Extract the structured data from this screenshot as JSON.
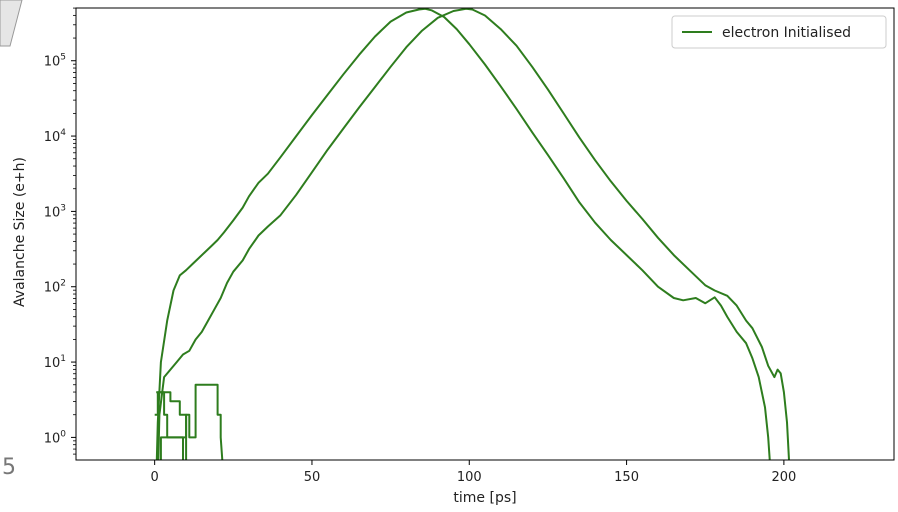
{
  "chart_data": {
    "type": "line",
    "title": "",
    "xlabel": "time [ps]",
    "ylabel": "Avalanche Size (e+h)",
    "xlim": [
      -25,
      235
    ],
    "ylim_log10": [
      -0.3,
      5.7
    ],
    "yscale": "log",
    "grid": false,
    "legend_position": "top-right",
    "line_color": "#2e7d1e",
    "x_ticks": [
      0,
      50,
      100,
      150,
      200
    ],
    "y_ticks": [
      {
        "label": "10",
        "exp": "0",
        "log10": 0
      },
      {
        "label": "10",
        "exp": "1",
        "log10": 1
      },
      {
        "label": "10",
        "exp": "2",
        "log10": 2
      },
      {
        "label": "10",
        "exp": "3",
        "log10": 3
      },
      {
        "label": "10",
        "exp": "4",
        "log10": 4
      },
      {
        "label": "10",
        "exp": "5",
        "log10": 5
      }
    ],
    "legend": [
      {
        "label": "electron Initialised",
        "color": "#2e7d1e"
      }
    ],
    "series": [
      {
        "name": "electron Initialised",
        "points": [
          [
            0.5,
            -0.6
          ],
          [
            1,
            0.2
          ],
          [
            2,
            1.0
          ],
          [
            4,
            1.55
          ],
          [
            6,
            1.95
          ],
          [
            8,
            2.15
          ],
          [
            10,
            2.22
          ],
          [
            12,
            2.3
          ],
          [
            14,
            2.38
          ],
          [
            16,
            2.46
          ],
          [
            18,
            2.54
          ],
          [
            20,
            2.62
          ],
          [
            22,
            2.72
          ],
          [
            25,
            2.88
          ],
          [
            28,
            3.05
          ],
          [
            30,
            3.2
          ],
          [
            33,
            3.38
          ],
          [
            36,
            3.5
          ],
          [
            40,
            3.72
          ],
          [
            45,
            4.0
          ],
          [
            50,
            4.28
          ],
          [
            55,
            4.55
          ],
          [
            60,
            4.82
          ],
          [
            65,
            5.08
          ],
          [
            70,
            5.32
          ],
          [
            75,
            5.52
          ],
          [
            80,
            5.64
          ],
          [
            84,
            5.68
          ],
          [
            86,
            5.69
          ],
          [
            88,
            5.67
          ],
          [
            92,
            5.58
          ],
          [
            96,
            5.42
          ],
          [
            100,
            5.22
          ],
          [
            105,
            4.95
          ],
          [
            110,
            4.66
          ],
          [
            115,
            4.36
          ],
          [
            120,
            4.05
          ],
          [
            125,
            3.75
          ],
          [
            130,
            3.44
          ],
          [
            135,
            3.12
          ],
          [
            140,
            2.85
          ],
          [
            145,
            2.62
          ],
          [
            150,
            2.42
          ],
          [
            155,
            2.22
          ],
          [
            160,
            2.0
          ],
          [
            165,
            1.85
          ],
          [
            168,
            1.82
          ],
          [
            172,
            1.85
          ],
          [
            175,
            1.78
          ],
          [
            178,
            1.86
          ],
          [
            180,
            1.75
          ],
          [
            182,
            1.6
          ],
          [
            185,
            1.4
          ],
          [
            188,
            1.25
          ],
          [
            190,
            1.05
          ],
          [
            192,
            0.8
          ],
          [
            194,
            0.4
          ],
          [
            195,
            0.0
          ],
          [
            196,
            -0.6
          ]
        ]
      },
      {
        "name": "",
        "points": [
          [
            1,
            -0.6
          ],
          [
            1.5,
            0.3
          ],
          [
            3,
            0.8
          ],
          [
            5,
            0.9
          ],
          [
            7,
            1.0
          ],
          [
            9,
            1.1
          ],
          [
            11,
            1.15
          ],
          [
            13,
            1.3
          ],
          [
            15,
            1.4
          ],
          [
            17,
            1.55
          ],
          [
            19,
            1.7
          ],
          [
            21,
            1.85
          ],
          [
            23,
            2.05
          ],
          [
            25,
            2.2
          ],
          [
            28,
            2.35
          ],
          [
            30,
            2.5
          ],
          [
            33,
            2.68
          ],
          [
            36,
            2.8
          ],
          [
            40,
            2.95
          ],
          [
            45,
            3.22
          ],
          [
            50,
            3.52
          ],
          [
            55,
            3.82
          ],
          [
            60,
            4.1
          ],
          [
            65,
            4.38
          ],
          [
            70,
            4.65
          ],
          [
            75,
            4.92
          ],
          [
            80,
            5.18
          ],
          [
            85,
            5.4
          ],
          [
            90,
            5.57
          ],
          [
            95,
            5.66
          ],
          [
            99,
            5.69
          ],
          [
            101,
            5.68
          ],
          [
            105,
            5.6
          ],
          [
            110,
            5.42
          ],
          [
            115,
            5.2
          ],
          [
            120,
            4.92
          ],
          [
            125,
            4.62
          ],
          [
            130,
            4.3
          ],
          [
            135,
            3.98
          ],
          [
            140,
            3.68
          ],
          [
            145,
            3.4
          ],
          [
            150,
            3.14
          ],
          [
            155,
            2.9
          ],
          [
            160,
            2.65
          ],
          [
            165,
            2.42
          ],
          [
            170,
            2.22
          ],
          [
            175,
            2.02
          ],
          [
            178,
            1.95
          ],
          [
            182,
            1.88
          ],
          [
            185,
            1.75
          ],
          [
            188,
            1.55
          ],
          [
            190,
            1.45
          ],
          [
            193,
            1.2
          ],
          [
            195,
            0.95
          ],
          [
            197,
            0.8
          ],
          [
            198,
            0.9
          ],
          [
            199,
            0.85
          ],
          [
            200,
            0.6
          ],
          [
            201,
            0.2
          ],
          [
            202,
            -0.6
          ]
        ]
      },
      {
        "name": "",
        "points": [
          [
            0,
            0.3
          ],
          [
            1,
            0.3
          ],
          [
            1,
            0.6
          ],
          [
            3,
            0.6
          ],
          [
            3,
            0.3
          ],
          [
            4,
            0.3
          ],
          [
            4,
            0.0
          ],
          [
            9,
            0.0
          ],
          [
            9,
            -0.6
          ]
        ]
      },
      {
        "name": "",
        "points": [
          [
            0.5,
            0.6
          ],
          [
            5,
            0.6
          ],
          [
            5,
            0.48
          ],
          [
            8,
            0.48
          ],
          [
            8,
            0.3
          ],
          [
            10,
            0.3
          ],
          [
            10,
            -0.6
          ]
        ]
      },
      {
        "name": "",
        "points": [
          [
            2,
            -0.6
          ],
          [
            2,
            0.0
          ],
          [
            10,
            0.0
          ],
          [
            10,
            0.3
          ],
          [
            11,
            0.3
          ],
          [
            11,
            0.0
          ],
          [
            13,
            0.0
          ],
          [
            13,
            0.7
          ],
          [
            20,
            0.7
          ],
          [
            20,
            0.3
          ],
          [
            21,
            0.3
          ],
          [
            21,
            0.0
          ],
          [
            22,
            -0.6
          ]
        ]
      }
    ]
  },
  "edge_fragment": {
    "digit": "5"
  }
}
